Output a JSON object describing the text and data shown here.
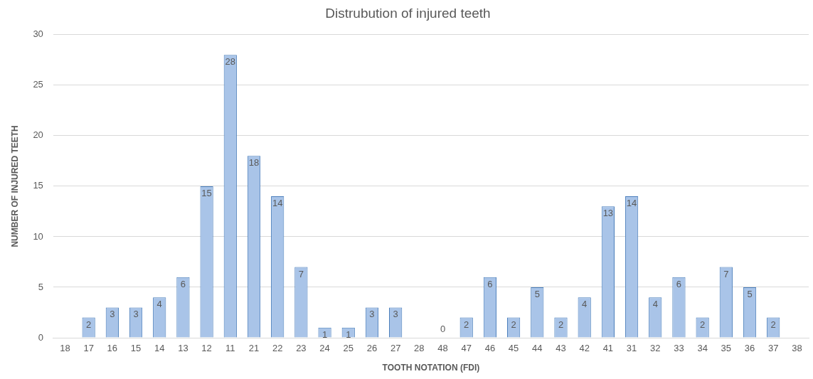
{
  "chart_data": {
    "type": "bar",
    "title": "Distrubution of injured teeth",
    "xlabel": "TOOTH NOTATION (FDI)",
    "ylabel": "NUMBER OF INJURED TEETH",
    "categories": [
      "18",
      "17",
      "16",
      "15",
      "14",
      "13",
      "12",
      "11",
      "21",
      "22",
      "23",
      "24",
      "25",
      "26",
      "27",
      "28",
      "48",
      "47",
      "46",
      "45",
      "44",
      "43",
      "42",
      "41",
      "31",
      "32",
      "33",
      "34",
      "35",
      "36",
      "37",
      "38"
    ],
    "values": [
      null,
      2,
      3,
      3,
      4,
      6,
      15,
      28,
      18,
      14,
      7,
      1,
      1,
      3,
      3,
      null,
      0,
      2,
      6,
      2,
      5,
      2,
      4,
      13,
      14,
      4,
      6,
      2,
      7,
      5,
      2,
      null
    ],
    "color": "#a9c4e8",
    "ylim": [
      0,
      30
    ],
    "yticks": [
      0,
      5,
      10,
      15,
      20,
      25,
      30
    ],
    "grid": "y",
    "data_labels": true
  }
}
